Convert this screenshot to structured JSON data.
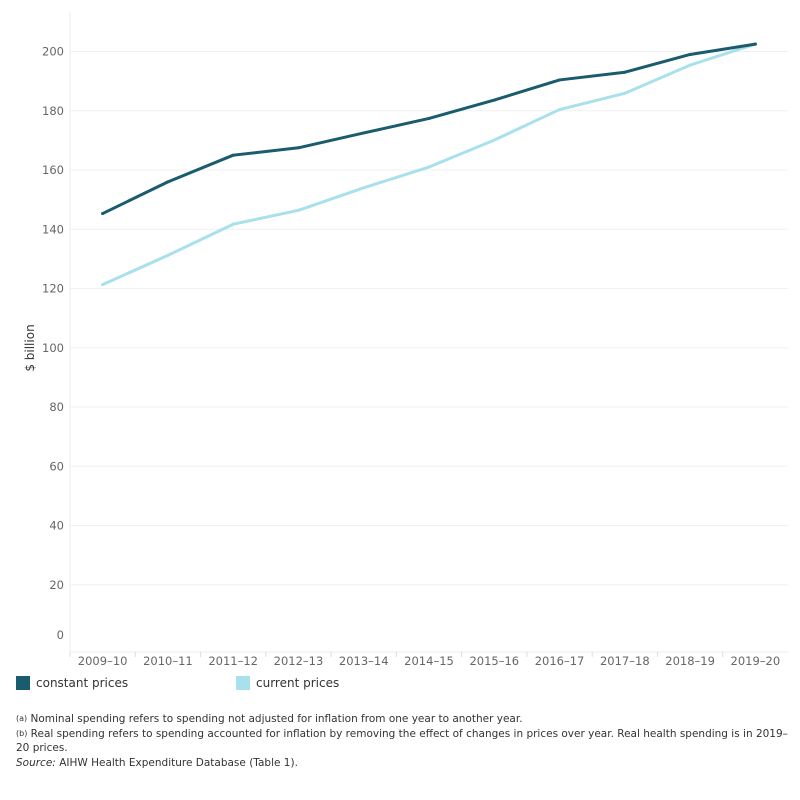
{
  "chart_data": {
    "type": "line",
    "title": "",
    "xlabel": "",
    "ylabel": "$ billion",
    "ylim": [
      0,
      215
    ],
    "yticks": [
      0,
      20,
      40,
      60,
      80,
      100,
      120,
      140,
      160,
      180,
      200
    ],
    "grid": true,
    "legend_position": "bottom",
    "categories": [
      "2009–10",
      "2010–11",
      "2011–12",
      "2012–13",
      "2013–14",
      "2014–15",
      "2015–16",
      "2016–17",
      "2017–18",
      "2018–19",
      "2019–20"
    ],
    "series": [
      {
        "name": "constant prices",
        "color": "#1a5c6e",
        "values": [
          145.3,
          156.0,
          165.0,
          167.5,
          172.5,
          177.4,
          183.6,
          190.4,
          193.0,
          199.0,
          202.5
        ]
      },
      {
        "name": "current prices",
        "color": "#a8e1ec",
        "values": [
          121.3,
          131.2,
          141.7,
          146.4,
          154.0,
          161.0,
          170.1,
          180.4,
          185.9,
          195.4,
          202.5
        ]
      }
    ]
  },
  "notes": {
    "a_marker": "(a)",
    "a_text": "Nominal spending refers to spending not adjusted for inflation from one year to another year.",
    "b_marker": "(b)",
    "b_text": "Real spending refers to spending accounted for inflation by removing the effect of changes in prices over year. Real health spending is in 2019–20 prices.",
    "source_label": "Source:",
    "source_text": "AIHW Health Expenditure Database (Table 1)."
  }
}
